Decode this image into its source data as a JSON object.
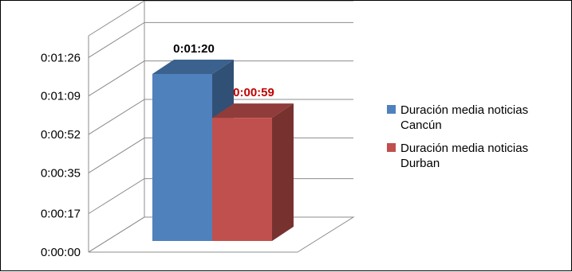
{
  "chart_data": {
    "type": "bar",
    "style": "3d-clustered-column",
    "title": "",
    "xlabel": "",
    "ylabel": "",
    "categories": [
      ""
    ],
    "y_unit": "seconds",
    "ylim": [
      0,
      95.6
    ],
    "yticks": [
      0,
      17,
      35,
      52,
      69,
      86
    ],
    "ytick_labels": [
      "0:00:00",
      "0:00:17",
      "0:00:35",
      "0:00:52",
      "0:01:09",
      "0:01:26"
    ],
    "grid": true,
    "legend_position": "right",
    "series": [
      {
        "name": "Duración media noticias Cancún",
        "values": [
          80
        ],
        "label": "0:01:20",
        "color": "#4f81bd",
        "label_color": "#000000"
      },
      {
        "name": "Duración media noticias Durban",
        "values": [
          59
        ],
        "label": "0:00:59",
        "color": "#c0504d",
        "label_color": "#c00000"
      }
    ]
  }
}
